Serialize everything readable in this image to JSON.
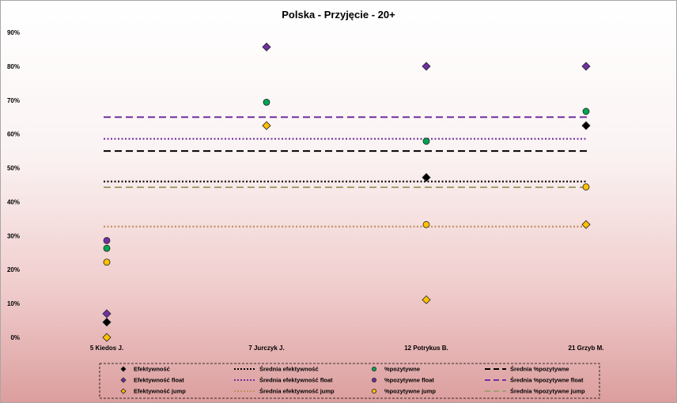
{
  "chart_data": {
    "type": "scatter",
    "title": "Polska - Przyjęcie - 20+",
    "xlabel": "",
    "ylabel": "",
    "categories": [
      "5 Kiedos J.",
      "7 Jurczyk J.",
      "12 Potrykus B.",
      "21 Grzyb M."
    ],
    "ylim": [
      0,
      90
    ],
    "yticks": [
      0,
      10,
      20,
      30,
      40,
      50,
      60,
      70,
      80,
      90
    ],
    "ytick_format": "%",
    "grid": false,
    "legend_position": "bottom",
    "series": [
      {
        "name": "Efektywność",
        "kind": "points",
        "marker": "diamond",
        "color": "#000000",
        "values": [
          4.5,
          null,
          47.2,
          62.5
        ]
      },
      {
        "name": "Średnia efektywność",
        "kind": "avg",
        "dash": "dotted",
        "color": "#000000",
        "value": 46
      },
      {
        "name": "%pozytywne",
        "kind": "points",
        "marker": "circle",
        "color": "#00a651",
        "values": [
          26.3,
          69.4,
          57.9,
          66.7
        ]
      },
      {
        "name": "Średnia %pozytywne",
        "kind": "avg",
        "dash": "dashed",
        "color": "#000000",
        "value": 55
      },
      {
        "name": "Efektywność float",
        "kind": "points",
        "marker": "diamond",
        "color": "#7030a0",
        "values": [
          7,
          85.7,
          80,
          80
        ]
      },
      {
        "name": "Średnia efektywność float",
        "kind": "avg",
        "dash": "dotted",
        "color": "#7030a0",
        "value": 58.6
      },
      {
        "name": "%pozytywne float",
        "kind": "points",
        "marker": "circle",
        "color": "#7030a0",
        "values": [
          28.6,
          null,
          null,
          null
        ]
      },
      {
        "name": "Średnia %pozytywne float",
        "kind": "avg",
        "dash": "dashed",
        "color": "#7030a0",
        "value": 65
      },
      {
        "name": "Efektywność jump",
        "kind": "points",
        "marker": "diamond",
        "color": "#ffc000",
        "values": [
          0,
          62.5,
          11.1,
          33.3
        ]
      },
      {
        "name": "Średnia efektywność jump",
        "kind": "avg",
        "dash": "dotted",
        "color": "#c09060",
        "value": 32.7
      },
      {
        "name": "%pozytywne jump",
        "kind": "points",
        "marker": "circle",
        "color": "#ffc000",
        "values": [
          22.2,
          null,
          33.3,
          44.4
        ]
      },
      {
        "name": "Średnia %pozytywne jump",
        "kind": "avg",
        "dash": "dashed",
        "color": "#a0a070",
        "value": 44.3
      }
    ],
    "legend_order": [
      "Efektywność",
      "Średnia efektywność",
      "%pozytywne",
      "Średnia %pozytywne",
      "Efektywność float",
      "Średnia efektywność float",
      "%pozytywne float",
      "Średnia %pozytywne float",
      "Efektywność jump",
      "Średnia efektywność jump",
      "%pozytywne jump",
      "Średnia %pozytywne jump"
    ]
  }
}
